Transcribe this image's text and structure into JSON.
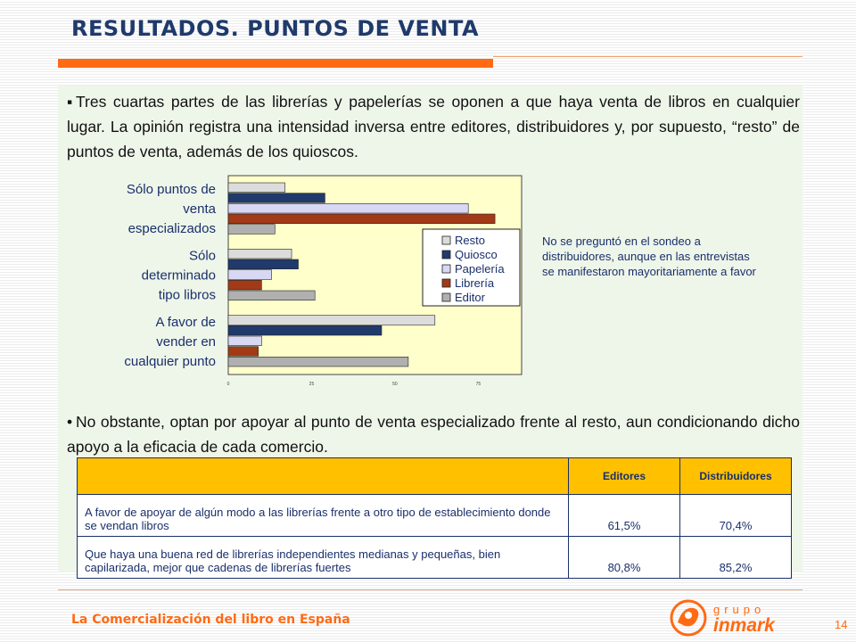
{
  "header": {
    "title": "RESULTADOS. PUNTOS DE VENTA"
  },
  "paragraphs": {
    "p1_bullet": "▪",
    "p1": "Tres cuartas partes de las librerías y papelerías se oponen a que haya venta de libros en cualquier lugar. La opinión registra una intensidad inversa entre editores, distribuidores y, por supuesto, “resto” de puntos de venta, además de los quioscos.",
    "p2_bullet": "•",
    "p2": "No obstante, optan por apoyar al punto de venta especializado frente al resto, aun condicionando dicho apoyo a la eficacia de cada comercio."
  },
  "chart_data": {
    "type": "bar",
    "orientation": "horizontal",
    "categories": [
      [
        "Sólo puntos de",
        "venta",
        "especializados"
      ],
      [
        "Sólo",
        "determinado",
        "tipo libros"
      ],
      [
        "A favor de",
        "vender en",
        "cualquier punto"
      ]
    ],
    "series": [
      {
        "name": "Resto",
        "values": [
          17,
          19,
          62
        ]
      },
      {
        "name": "Quiosco",
        "values": [
          29,
          21,
          46
        ]
      },
      {
        "name": "Papelería",
        "values": [
          72,
          13,
          10
        ]
      },
      {
        "name": "Librería",
        "values": [
          80,
          10,
          9
        ]
      },
      {
        "name": "Editor",
        "values": [
          14,
          26,
          54
        ]
      }
    ],
    "xticks": [
      "0",
      "25",
      "50",
      "75"
    ],
    "xlim": [
      0,
      88
    ],
    "legend_position": "right",
    "colors": [
      "#dcdcdc",
      "#1f3a6b",
      "#d8d8f4",
      "#a23a17",
      "#b0b0b0"
    ],
    "plot_background": "#ffffcc"
  },
  "note": "No se preguntó en el sondeo a distribuidores, aunque en las entrevistas se manifestaron mayoritariamente a favor",
  "table": {
    "headers": [
      "",
      "Editores",
      "Distribuidores"
    ],
    "rows": [
      {
        "label": "A favor de apoyar de algún modo a las librerías frente a otro tipo de establecimiento donde se vendan libros",
        "editores": "61,5%",
        "distribuidores": "70,4%"
      },
      {
        "label": "Que haya una buena red de librerías independientes medianas y pequeñas, bien capilarizada, mejor que cadenas de librerías fuertes",
        "editores": "80,8%",
        "distribuidores": "85,2%"
      }
    ]
  },
  "footer": {
    "text": "La Comercialización del libro en España",
    "logo_top": "grupo",
    "logo_bottom": "inmark",
    "page": "14"
  },
  "colors": {
    "accent": "#ff6a13",
    "title": "#1f3a6b",
    "table_header": "#ffc000"
  }
}
